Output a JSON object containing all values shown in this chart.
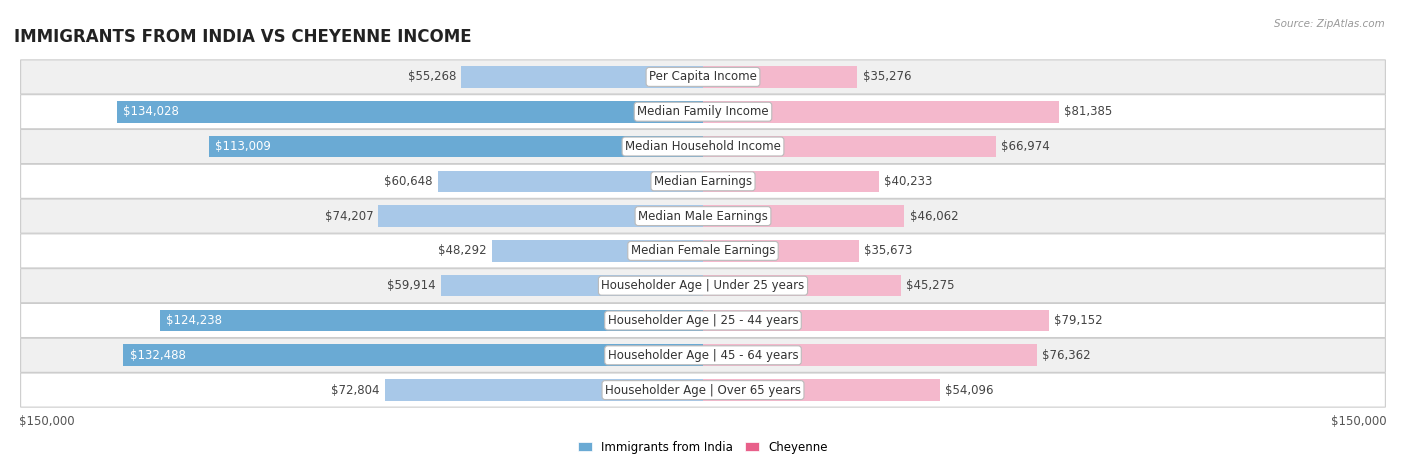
{
  "title": "IMMIGRANTS FROM INDIA VS CHEYENNE INCOME",
  "source": "Source: ZipAtlas.com",
  "categories": [
    "Per Capita Income",
    "Median Family Income",
    "Median Household Income",
    "Median Earnings",
    "Median Male Earnings",
    "Median Female Earnings",
    "Householder Age | Under 25 years",
    "Householder Age | 25 - 44 years",
    "Householder Age | 45 - 64 years",
    "Householder Age | Over 65 years"
  ],
  "india_values": [
    55268,
    134028,
    113009,
    60648,
    74207,
    48292,
    59914,
    124238,
    132488,
    72804
  ],
  "cheyenne_values": [
    35276,
    81385,
    66974,
    40233,
    46062,
    35673,
    45275,
    79152,
    76362,
    54096
  ],
  "india_labels": [
    "$55,268",
    "$134,028",
    "$113,009",
    "$60,648",
    "$74,207",
    "$48,292",
    "$59,914",
    "$124,238",
    "$132,488",
    "$72,804"
  ],
  "cheyenne_labels": [
    "$35,276",
    "$81,385",
    "$66,974",
    "$40,233",
    "$46,062",
    "$35,673",
    "$45,275",
    "$79,152",
    "$76,362",
    "$54,096"
  ],
  "india_color_light": "#a8c8e8",
  "india_color_dark": "#6aaad4",
  "cheyenne_color_light": "#f4b8cc",
  "cheyenne_color_dark": "#e8608a",
  "max_value": 150000,
  "bg_color": "#ffffff",
  "row_bg_even": "#f0f0f0",
  "row_bg_odd": "#ffffff",
  "label_fontsize": 8.5,
  "title_fontsize": 12,
  "legend_india": "Immigrants from India",
  "legend_cheyenne": "Cheyenne",
  "india_threshold": 90000,
  "cheyenne_threshold": 90000
}
